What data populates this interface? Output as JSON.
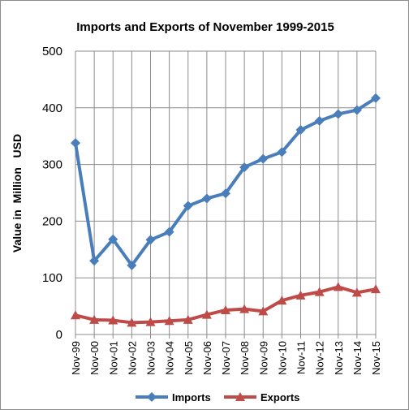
{
  "chart_data": {
    "type": "line",
    "title": "Imports and Exports of November 1999-2015",
    "xlabel": "",
    "ylabel": "Value in  Million   USD",
    "ylim": [
      0,
      500
    ],
    "yticks": [
      0,
      100,
      200,
      300,
      400,
      500
    ],
    "grid": true,
    "legend_position": "bottom",
    "categories": [
      "Nov-99",
      "Nov-00",
      "Nov-01",
      "Nov-02",
      "Nov-03",
      "Nov-04",
      "Nov-05",
      "Nov-06",
      "Nov-07",
      "Nov-08",
      "Nov-09",
      "Nov-10",
      "Nov-11",
      "Nov-12",
      "Nov-13",
      "Nov-14",
      "Nov-15"
    ],
    "series": [
      {
        "name": "Imports",
        "color": "#4a7ebb",
        "marker": "diamond",
        "values": [
          338,
          130,
          168,
          122,
          167,
          181,
          227,
          240,
          249,
          295,
          310,
          322,
          361,
          377,
          389,
          396,
          417
        ]
      },
      {
        "name": "Exports",
        "color": "#be4b48",
        "marker": "triangle",
        "values": [
          34,
          26,
          25,
          21,
          22,
          24,
          26,
          35,
          43,
          45,
          41,
          60,
          69,
          75,
          84,
          74,
          80
        ]
      }
    ]
  }
}
